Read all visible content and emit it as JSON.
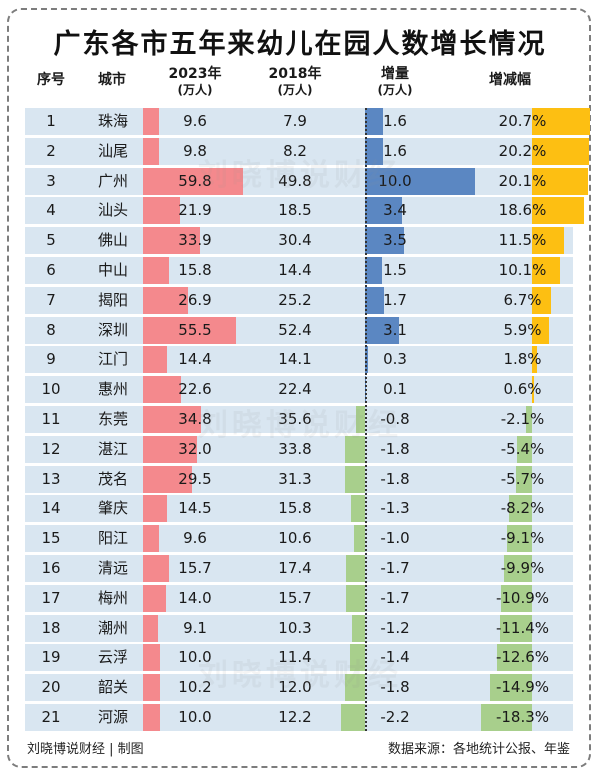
{
  "chart_data": {
    "type": "table",
    "title": "广东各市五年来幼儿在园人数增长情况",
    "columns": {
      "no": "序号",
      "city": "城市",
      "y2023": "2023年",
      "y2023_unit": "(万人)",
      "y2018": "2018年",
      "y2018_unit": "(万人)",
      "inc": "增量",
      "inc_unit": "(万人)",
      "pct": "增减幅"
    },
    "rows": [
      {
        "no": "1",
        "city": "珠海",
        "y2023": 9.6,
        "y2018": 7.9,
        "inc": 1.6,
        "pct": 20.7
      },
      {
        "no": "2",
        "city": "汕尾",
        "y2023": 9.8,
        "y2018": 8.2,
        "inc": 1.6,
        "pct": 20.2
      },
      {
        "no": "3",
        "city": "广州",
        "y2023": 59.8,
        "y2018": 49.8,
        "inc": 10.0,
        "pct": 20.1
      },
      {
        "no": "4",
        "city": "汕头",
        "y2023": 21.9,
        "y2018": 18.5,
        "inc": 3.4,
        "pct": 18.6
      },
      {
        "no": "5",
        "city": "佛山",
        "y2023": 33.9,
        "y2018": 30.4,
        "inc": 3.5,
        "pct": 11.5
      },
      {
        "no": "6",
        "city": "中山",
        "y2023": 15.8,
        "y2018": 14.4,
        "inc": 1.5,
        "pct": 10.1
      },
      {
        "no": "7",
        "city": "揭阳",
        "y2023": 26.9,
        "y2018": 25.2,
        "inc": 1.7,
        "pct": 6.7
      },
      {
        "no": "8",
        "city": "深圳",
        "y2023": 55.5,
        "y2018": 52.4,
        "inc": 3.1,
        "pct": 5.9
      },
      {
        "no": "9",
        "city": "江门",
        "y2023": 14.4,
        "y2018": 14.1,
        "inc": 0.3,
        "pct": 1.8
      },
      {
        "no": "10",
        "city": "惠州",
        "y2023": 22.6,
        "y2018": 22.4,
        "inc": 0.1,
        "pct": 0.6
      },
      {
        "no": "11",
        "city": "东莞",
        "y2023": 34.8,
        "y2018": 35.6,
        "inc": -0.8,
        "pct": -2.1
      },
      {
        "no": "12",
        "city": "湛江",
        "y2023": 32.0,
        "y2018": 33.8,
        "inc": -1.8,
        "pct": -5.4
      },
      {
        "no": "13",
        "city": "茂名",
        "y2023": 29.5,
        "y2018": 31.3,
        "inc": -1.8,
        "pct": -5.7
      },
      {
        "no": "14",
        "city": "肇庆",
        "y2023": 14.5,
        "y2018": 15.8,
        "inc": -1.3,
        "pct": -8.2
      },
      {
        "no": "15",
        "city": "阳江",
        "y2023": 9.6,
        "y2018": 10.6,
        "inc": -1.0,
        "pct": -9.1
      },
      {
        "no": "16",
        "city": "清远",
        "y2023": 15.7,
        "y2018": 17.4,
        "inc": -1.7,
        "pct": -9.9
      },
      {
        "no": "17",
        "city": "梅州",
        "y2023": 14.0,
        "y2018": 15.7,
        "inc": -1.7,
        "pct": -10.9
      },
      {
        "no": "18",
        "city": "潮州",
        "y2023": 9.1,
        "y2018": 10.3,
        "inc": -1.2,
        "pct": -11.4
      },
      {
        "no": "19",
        "city": "云浮",
        "y2023": 10.0,
        "y2018": 11.4,
        "inc": -1.4,
        "pct": -12.6
      },
      {
        "no": "20",
        "city": "韶关",
        "y2023": 10.2,
        "y2018": 12.0,
        "inc": -1.8,
        "pct": -14.9
      },
      {
        "no": "21",
        "city": "河源",
        "y2023": 10.0,
        "y2018": 12.2,
        "inc": -2.2,
        "pct": -18.3
      }
    ],
    "colors": {
      "row_band": "#d9e6f1",
      "bar_2023": "#f4898d",
      "bar_inc_pos": "#5b87c2",
      "bar_inc_neg": "#a8cf8c",
      "bar_pct_pos": "#fdbf12",
      "bar_pct_neg": "#a8cf8c"
    },
    "watermark": "刘晓博说财经"
  },
  "footer": {
    "credit": "刘晓博说财经 | 制图",
    "source": "数据来源：各地统计公报、年鉴"
  }
}
